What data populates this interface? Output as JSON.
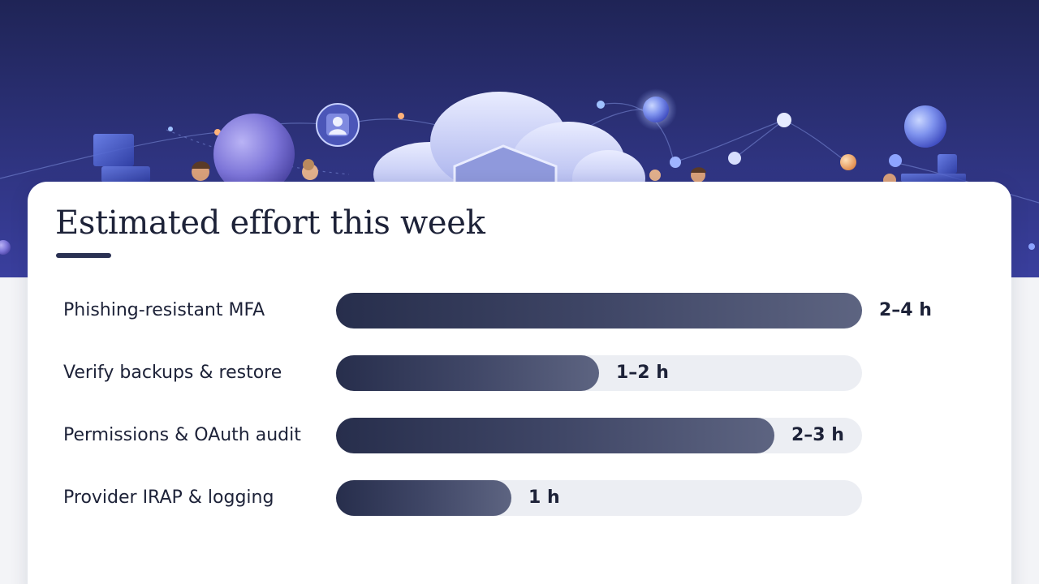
{
  "chart_data": {
    "type": "bar",
    "orientation": "horizontal",
    "title": "Estimated effort this week",
    "categories": [
      "Phishing-resistant MFA",
      "Verify backups & restore",
      "Permissions & OAuth audit",
      "Provider IRAP & logging"
    ],
    "values": [
      1.0,
      0.5,
      0.833,
      0.333
    ],
    "value_labels": [
      "2–4 h",
      "1–2 h",
      "2–3 h",
      "1 h"
    ],
    "scale_max": 1.0,
    "legend": "none",
    "grid": false
  },
  "colors": {
    "bar_dark": "#272e4c",
    "bar_light": "#5d6481",
    "track": "#eceef3",
    "text": "#1d2238",
    "hero_top": "#1f2456",
    "hero_bottom": "#3a3f9e"
  },
  "hero": {
    "icons": [
      "cloud-shield-icon",
      "person-badge-icon",
      "network-nodes-icon",
      "people-icon"
    ]
  }
}
